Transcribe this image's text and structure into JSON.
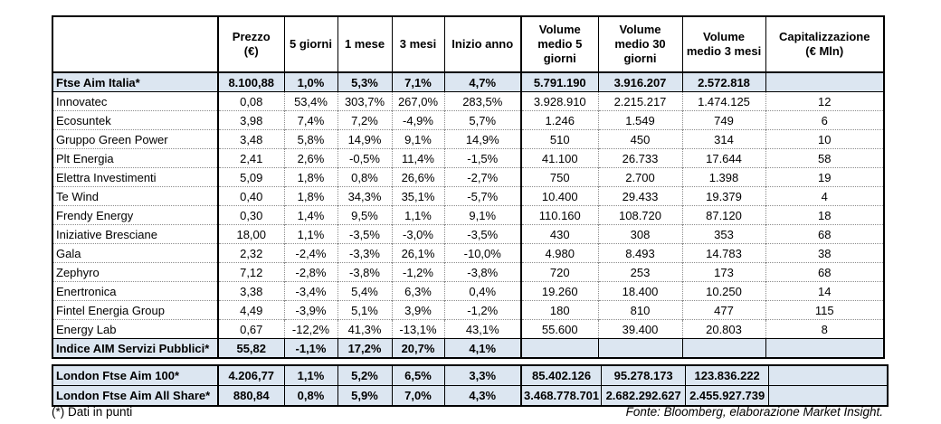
{
  "main_table": {
    "headers": [
      "",
      "Prezzo\n(€)",
      "5 giorni",
      "1 mese",
      "3 mesi",
      "Inizio anno",
      "Volume\nmedio 5\ngiorni",
      "Volume\nmedio 30\ngiorni",
      "Volume\nmedio 3 mesi",
      "Capitalizzazione\n(€ Mln)"
    ],
    "rows": [
      {
        "name": "Ftse Aim Italia*",
        "prezzo": "8.100,88",
        "d5": "1,0%",
        "m1": "5,3%",
        "m3": "7,1%",
        "ytd": "4,7%",
        "vol5": "5.791.190",
        "vol30": "3.916.207",
        "vol3m": "2.572.818",
        "cap": "",
        "highlight": true
      },
      {
        "name": "Innovatec",
        "prezzo": "0,08",
        "d5": "53,4%",
        "m1": "303,7%",
        "m3": "267,0%",
        "ytd": "283,5%",
        "vol5": "3.928.910",
        "vol30": "2.215.217",
        "vol3m": "1.474.125",
        "cap": "12",
        "highlight": false
      },
      {
        "name": "Ecosuntek",
        "prezzo": "3,98",
        "d5": "7,4%",
        "m1": "7,2%",
        "m3": "-4,9%",
        "ytd": "5,7%",
        "vol5": "1.246",
        "vol30": "1.549",
        "vol3m": "749",
        "cap": "6",
        "highlight": false
      },
      {
        "name": "Gruppo Green Power",
        "prezzo": "3,48",
        "d5": "5,8%",
        "m1": "14,9%",
        "m3": "9,1%",
        "ytd": "14,9%",
        "vol5": "510",
        "vol30": "450",
        "vol3m": "314",
        "cap": "10",
        "highlight": false
      },
      {
        "name": "Plt Energia",
        "prezzo": "2,41",
        "d5": "2,6%",
        "m1": "-0,5%",
        "m3": "11,4%",
        "ytd": "-1,5%",
        "vol5": "41.100",
        "vol30": "26.733",
        "vol3m": "17.644",
        "cap": "58",
        "highlight": false
      },
      {
        "name": "Elettra Investimenti",
        "prezzo": "5,09",
        "d5": "1,8%",
        "m1": "0,8%",
        "m3": "26,6%",
        "ytd": "-2,7%",
        "vol5": "750",
        "vol30": "2.700",
        "vol3m": "1.398",
        "cap": "19",
        "highlight": false
      },
      {
        "name": "Te Wind",
        "prezzo": "0,40",
        "d5": "1,8%",
        "m1": "34,3%",
        "m3": "35,1%",
        "ytd": "-5,7%",
        "vol5": "10.400",
        "vol30": "29.433",
        "vol3m": "19.379",
        "cap": "4",
        "highlight": false
      },
      {
        "name": "Frendy Energy",
        "prezzo": "0,30",
        "d5": "1,4%",
        "m1": "9,5%",
        "m3": "1,1%",
        "ytd": "9,1%",
        "vol5": "110.160",
        "vol30": "108.720",
        "vol3m": "87.120",
        "cap": "18",
        "highlight": false
      },
      {
        "name": "Iniziative Bresciane",
        "prezzo": "18,00",
        "d5": "1,1%",
        "m1": "-3,5%",
        "m3": "-3,0%",
        "ytd": "-3,5%",
        "vol5": "430",
        "vol30": "308",
        "vol3m": "353",
        "cap": "68",
        "highlight": false
      },
      {
        "name": "Gala",
        "prezzo": "2,32",
        "d5": "-2,4%",
        "m1": "-3,3%",
        "m3": "26,1%",
        "ytd": "-10,0%",
        "vol5": "4.980",
        "vol30": "8.493",
        "vol3m": "14.783",
        "cap": "38",
        "highlight": false
      },
      {
        "name": "Zephyro",
        "prezzo": "7,12",
        "d5": "-2,8%",
        "m1": "-3,8%",
        "m3": "-1,2%",
        "ytd": "-3,8%",
        "vol5": "720",
        "vol30": "253",
        "vol3m": "173",
        "cap": "68",
        "highlight": false
      },
      {
        "name": "Enertronica",
        "prezzo": "3,38",
        "d5": "-3,4%",
        "m1": "5,4%",
        "m3": "6,3%",
        "ytd": "0,4%",
        "vol5": "19.260",
        "vol30": "18.400",
        "vol3m": "10.250",
        "cap": "14",
        "highlight": false
      },
      {
        "name": "Fintel Energia Group",
        "prezzo": "4,49",
        "d5": "-3,9%",
        "m1": "5,1%",
        "m3": "3,9%",
        "ytd": "-1,2%",
        "vol5": "180",
        "vol30": "810",
        "vol3m": "477",
        "cap": "115",
        "highlight": false
      },
      {
        "name": "Energy Lab",
        "prezzo": "0,67",
        "d5": "-12,2%",
        "m1": "41,3%",
        "m3": "-13,1%",
        "ytd": "43,1%",
        "vol5": "55.600",
        "vol30": "39.400",
        "vol3m": "20.803",
        "cap": "8",
        "highlight": false
      },
      {
        "name": "Indice AIM Servizi Pubblici*",
        "prezzo": "55,82",
        "d5": "-1,1%",
        "m1": "17,2%",
        "m3": "20,7%",
        "ytd": "4,1%",
        "vol5": "",
        "vol30": "",
        "vol3m": "",
        "cap": "",
        "highlight": true
      }
    ]
  },
  "london_table": {
    "rows": [
      {
        "name": "London Ftse Aim 100*",
        "prezzo": "4.206,77",
        "d5": "1,1%",
        "m1": "5,2%",
        "m3": "6,5%",
        "ytd": "3,3%",
        "vol5": "85.402.126",
        "vol30": "95.278.173",
        "vol3m": "123.836.222",
        "cap": "",
        "highlight": true
      },
      {
        "name": "London Ftse Aim All Share*",
        "prezzo": "880,84",
        "d5": "0,8%",
        "m1": "5,9%",
        "m3": "7,0%",
        "ytd": "4,3%",
        "vol5": "3.468.778.701",
        "vol30": "2.682.292.627",
        "vol3m": "2.455.927.739",
        "cap": "",
        "highlight": true
      }
    ]
  },
  "footnotes": {
    "left": "(*) Dati in punti",
    "right": "Fonte: Bloomberg, elaborazione Market Insight."
  },
  "colors": {
    "highlight_row_bg": "#dce6f1",
    "border": "#000000"
  }
}
